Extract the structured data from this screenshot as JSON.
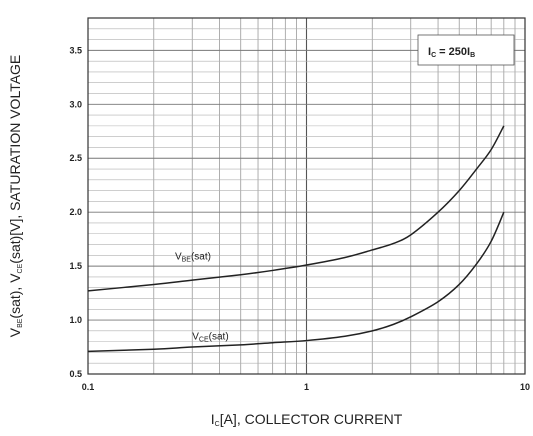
{
  "chart_data": {
    "type": "line",
    "title": "",
    "xlabel": {
      "text": "I",
      "sub": "C",
      "rest": "[A], COLLECTOR CURRENT"
    },
    "ylabel": {
      "parts": [
        {
          "t": "V"
        },
        {
          "t": "BE",
          "sub": true
        },
        {
          "t": "(sat), V"
        },
        {
          "t": "CE",
          "sub": true
        },
        {
          "t": "(sat)[V], SATURATION VOLTAGE"
        }
      ]
    },
    "x_scale": "log",
    "xlim": [
      0.1,
      10
    ],
    "ylim": [
      0.5,
      3.8
    ],
    "x_tick_labels": [
      {
        "value": 0.1,
        "label": "0.1"
      },
      {
        "value": 1,
        "label": "1"
      },
      {
        "value": 10,
        "label": "10"
      }
    ],
    "y_tick_labels": [
      {
        "value": 0.5,
        "label": "0.5"
      },
      {
        "value": 1.0,
        "label": "1.0"
      },
      {
        "value": 1.5,
        "label": "1.5"
      },
      {
        "value": 2.0,
        "label": "2.0"
      },
      {
        "value": 2.5,
        "label": "2.5"
      },
      {
        "value": 3.0,
        "label": "3.0"
      },
      {
        "value": 3.5,
        "label": "3.5"
      }
    ],
    "grid": true,
    "annotation": {
      "main": "I",
      "sub1": "C",
      "mid": " = 250I",
      "sub2": "B"
    },
    "series": [
      {
        "name": "VBE(sat)",
        "label_main": "V",
        "label_sub": "BE",
        "label_rest": "(sat)",
        "label_at": [
          0.25,
          1.56
        ],
        "x": [
          0.1,
          0.2,
          0.3,
          0.5,
          0.7,
          1,
          1.5,
          2,
          2.5,
          3,
          4,
          5,
          6,
          7,
          8
        ],
        "y": [
          1.27,
          1.33,
          1.37,
          1.42,
          1.46,
          1.51,
          1.58,
          1.65,
          1.71,
          1.79,
          2.0,
          2.2,
          2.4,
          2.58,
          2.8
        ]
      },
      {
        "name": "VCE(sat)",
        "label_main": "V",
        "label_sub": "CE",
        "label_rest": "(sat)",
        "label_at": [
          0.3,
          0.82
        ],
        "x": [
          0.1,
          0.2,
          0.3,
          0.5,
          0.7,
          1,
          1.5,
          2,
          2.5,
          3,
          4,
          5,
          6,
          7,
          8
        ],
        "y": [
          0.71,
          0.73,
          0.75,
          0.77,
          0.79,
          0.81,
          0.85,
          0.9,
          0.96,
          1.03,
          1.17,
          1.33,
          1.52,
          1.73,
          2.0
        ]
      }
    ]
  }
}
